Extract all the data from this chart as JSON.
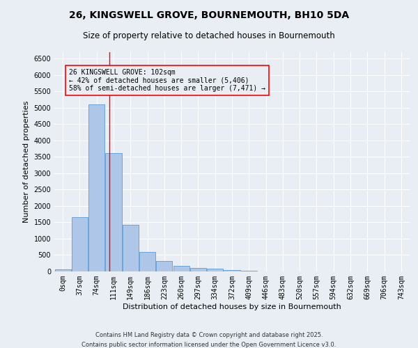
{
  "title": "26, KINGSWELL GROVE, BOURNEMOUTH, BH10 5DA",
  "subtitle": "Size of property relative to detached houses in Bournemouth",
  "xlabel": "Distribution of detached houses by size in Bournemouth",
  "ylabel": "Number of detached properties",
  "footnote1": "Contains HM Land Registry data © Crown copyright and database right 2025.",
  "footnote2": "Contains public sector information licensed under the Open Government Licence v3.0.",
  "categories": [
    "0sqm",
    "37sqm",
    "74sqm",
    "111sqm",
    "149sqm",
    "186sqm",
    "223sqm",
    "260sqm",
    "297sqm",
    "334sqm",
    "372sqm",
    "409sqm",
    "446sqm",
    "483sqm",
    "520sqm",
    "557sqm",
    "594sqm",
    "632sqm",
    "669sqm",
    "706sqm",
    "743sqm"
  ],
  "values": [
    55,
    1650,
    5100,
    3620,
    1420,
    600,
    310,
    165,
    110,
    80,
    40,
    25,
    5,
    2,
    1,
    1,
    0,
    0,
    0,
    0,
    0
  ],
  "bar_color": "#aec6e8",
  "bar_edge_color": "#5b9bd5",
  "bg_color": "#e8eef4",
  "grid_color": "#ffffff",
  "vline_x": 2.757,
  "vline_color": "red",
  "annotation_text": "26 KINGSWELL GROVE: 102sqm\n← 42% of detached houses are smaller (5,406)\n58% of semi-detached houses are larger (7,471) →",
  "annotation_box_color": "red",
  "ylim": [
    0,
    6700
  ],
  "yticks": [
    0,
    500,
    1000,
    1500,
    2000,
    2500,
    3000,
    3500,
    4000,
    4500,
    5000,
    5500,
    6000,
    6500
  ],
  "title_fontsize": 10,
  "subtitle_fontsize": 8.5,
  "label_fontsize": 8,
  "tick_fontsize": 7,
  "annot_fontsize": 7,
  "footnote_fontsize": 6
}
